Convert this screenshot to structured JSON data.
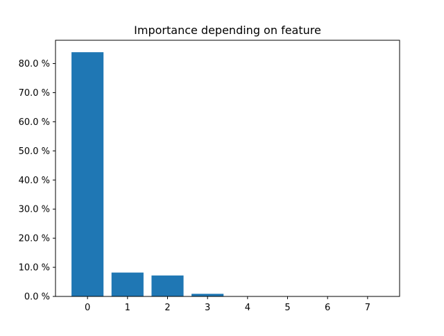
{
  "chart_data": {
    "type": "bar",
    "title": "Importance depending on feature",
    "xlabel": "",
    "ylabel": "",
    "categories": [
      "0",
      "1",
      "2",
      "3",
      "4",
      "5",
      "6",
      "7"
    ],
    "values": [
      83.9,
      8.2,
      7.2,
      0.9,
      0.0,
      0.0,
      0.0,
      0.0
    ],
    "value_unit": "%",
    "ylim": [
      0,
      88
    ],
    "xlim": [
      -0.8,
      7.8
    ],
    "y_ticks": [
      0,
      10,
      20,
      30,
      40,
      50,
      60,
      70,
      80
    ],
    "y_tick_labels": [
      "0.0 %",
      "10.0 %",
      "20.0 %",
      "30.0 %",
      "40.0 %",
      "50.0 %",
      "60.0 %",
      "70.0 %",
      "80.0 %"
    ],
    "grid": false,
    "legend": "none",
    "bar_color": "#1f77b4"
  }
}
